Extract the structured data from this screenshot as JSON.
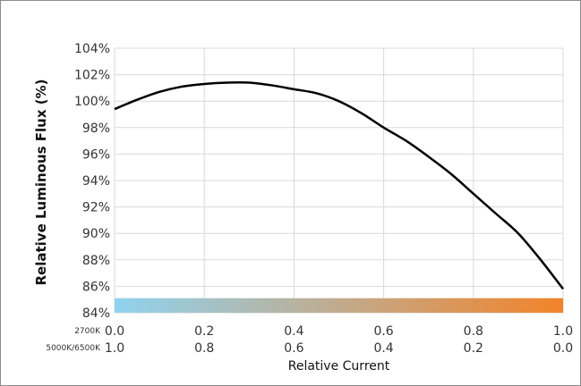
{
  "chart_data": {
    "type": "line",
    "title": "",
    "ylabel": "Relative Luminous Flux (%)",
    "xlabel": "Relative Current",
    "ylim": [
      84,
      104
    ],
    "xlim": [
      0,
      1
    ],
    "y_ticks": [
      "84%",
      "86%",
      "88%",
      "90%",
      "92%",
      "94%",
      "96%",
      "98%",
      "100%",
      "102%",
      "104%"
    ],
    "x_axis_rows": [
      {
        "label": "2700K",
        "ticks": [
          "0.0",
          "0.2",
          "0.4",
          "0.6",
          "0.8",
          "1.0"
        ]
      },
      {
        "label": "5000K/6500K",
        "ticks": [
          "1.0",
          "0.8",
          "0.6",
          "0.4",
          "0.2",
          "0.0"
        ]
      }
    ],
    "grid": true,
    "color_bar": {
      "from": "#8fd3f0",
      "to": "#f2832a"
    },
    "line_color": "#000000",
    "series": [
      {
        "x": [
          0.0,
          0.05,
          0.1,
          0.15,
          0.2,
          0.25,
          0.3,
          0.35,
          0.4,
          0.45,
          0.5,
          0.55,
          0.6,
          0.65,
          0.7,
          0.75,
          0.8,
          0.85,
          0.9,
          0.95,
          1.0
        ],
        "y": [
          99.4,
          100.1,
          100.7,
          101.1,
          101.3,
          101.4,
          101.4,
          101.2,
          100.9,
          100.6,
          100.0,
          99.1,
          98.0,
          97.0,
          95.8,
          94.5,
          93.0,
          91.5,
          90.0,
          88.0,
          85.8
        ]
      }
    ]
  }
}
